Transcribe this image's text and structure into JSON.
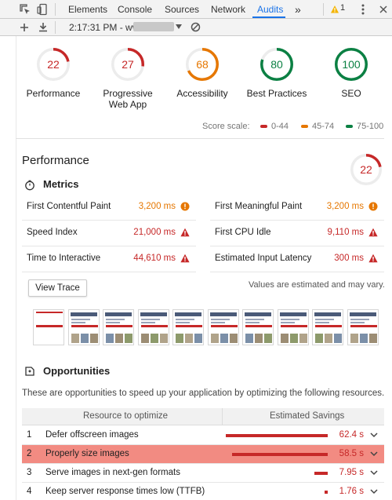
{
  "devtools": {
    "tabs": [
      "Elements",
      "Console",
      "Sources",
      "Network",
      "Audits"
    ],
    "active_tab": "Audits",
    "overflow": "»",
    "warning_count": "1"
  },
  "toolbar": {
    "timestamp_url": "2:17:31 PM - www."
  },
  "gauges": [
    {
      "label": "Performance",
      "score": "22",
      "value": 22,
      "color": "#c62828"
    },
    {
      "label": "Progressive Web App",
      "score": "27",
      "value": 27,
      "color": "#c62828"
    },
    {
      "label": "Accessibility",
      "score": "68",
      "value": 68,
      "color": "#e67700"
    },
    {
      "label": "Best Practices",
      "score": "80",
      "value": 80,
      "color": "#0b8043"
    },
    {
      "label": "SEO",
      "score": "100",
      "value": 100,
      "color": "#0b8043"
    }
  ],
  "score_scale": {
    "label": "Score scale:",
    "ranges": [
      {
        "text": "0-44",
        "color": "#c62828"
      },
      {
        "text": "45-74",
        "color": "#e67700"
      },
      {
        "text": "75-100",
        "color": "#0b8043"
      }
    ]
  },
  "performance": {
    "title": "Performance",
    "score": "22",
    "value": 22,
    "metrics_heading": "Metrics",
    "metrics": [
      {
        "label": "First Contentful Paint",
        "value": "3,200 ms",
        "status": "average"
      },
      {
        "label": "First Meaningful Paint",
        "value": "3,200 ms",
        "status": "average"
      },
      {
        "label": "Speed Index",
        "value": "21,000 ms",
        "status": "fail"
      },
      {
        "label": "First CPU Idle",
        "value": "9,110 ms",
        "status": "fail"
      },
      {
        "label": "Time to Interactive",
        "value": "44,610 ms",
        "status": "fail"
      },
      {
        "label": "Estimated Input Latency",
        "value": "300 ms",
        "status": "fail"
      }
    ],
    "view_trace": "View Trace",
    "estimate_note": "Values are estimated and may vary."
  },
  "opportunities": {
    "heading": "Opportunities",
    "description": "These are opportunities to speed up your application by optimizing the following resources.",
    "col_resource": "Resource to optimize",
    "col_savings": "Estimated Savings",
    "rows": [
      {
        "num": "1",
        "title": "Defer offscreen images",
        "savings": "62.4 s",
        "seconds": 62.4,
        "highlighted": false
      },
      {
        "num": "2",
        "title": "Properly size images",
        "savings": "58.5 s",
        "seconds": 58.5,
        "highlighted": true
      },
      {
        "num": "3",
        "title": "Serve images in next-gen formats",
        "savings": "7.95 s",
        "seconds": 7.95,
        "highlighted": false
      },
      {
        "num": "4",
        "title": "Keep server response times low (TTFB)",
        "savings": "1.76 s",
        "seconds": 1.76,
        "highlighted": false
      }
    ]
  },
  "colors": {
    "fail": "#c62828",
    "average": "#e67700",
    "pass": "#0b8043",
    "accent": "#1a73e8",
    "highlight_row": "#f28b82"
  }
}
